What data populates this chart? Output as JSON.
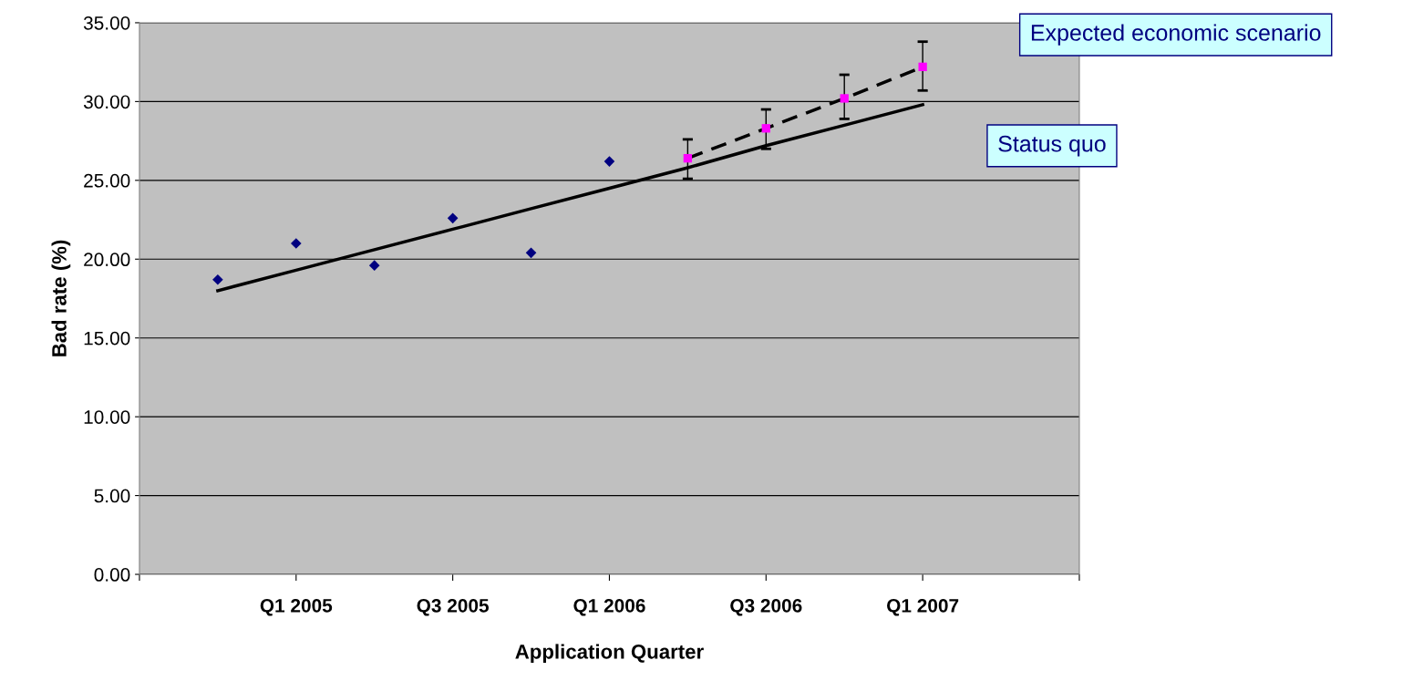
{
  "chart_data": {
    "type": "scatter",
    "xlabel": "Application Quarter",
    "ylabel": "Bad rate (%)",
    "categories": [
      null,
      null,
      "Q1 2005",
      null,
      "Q3 2005",
      null,
      "Q1 2006",
      null,
      "Q3 2006",
      null,
      "Q1 2007",
      null,
      null
    ],
    "series": [
      {
        "color": "#000080",
        "marker": "diamond",
        "values": [
          null,
          18.7,
          21.0,
          19.6,
          22.6,
          20.4,
          26.2,
          null,
          null,
          null,
          null,
          null,
          null
        ]
      },
      {
        "type": "line",
        "color": "#000000",
        "line_style": "solid",
        "marker": "none",
        "values": [
          null,
          18.0,
          19.3,
          20.6,
          21.9,
          23.2,
          24.5,
          25.8,
          27.2,
          28.5,
          29.8,
          null,
          null
        ]
      },
      {
        "type": "line",
        "color": "#000000",
        "line_style": "dashed",
        "marker": "none",
        "values": [
          null,
          null,
          null,
          null,
          null,
          null,
          null,
          26.4,
          28.3,
          30.2,
          32.2,
          null,
          null
        ]
      },
      {
        "color": "#ff00ff",
        "marker": "square",
        "values": [
          null,
          null,
          null,
          null,
          null,
          null,
          null,
          26.4,
          28.3,
          30.2,
          32.2,
          null,
          null
        ],
        "errors": [
          null,
          null,
          null,
          null,
          null,
          null,
          null,
          [
            25.1,
            27.6
          ],
          [
            27.0,
            29.5
          ],
          [
            28.9,
            31.7
          ],
          [
            30.7,
            33.8
          ],
          null,
          null
        ]
      }
    ],
    "ylim": [
      0,
      35
    ],
    "yticks": [
      {
        "value": 0,
        "label": "0.00"
      },
      {
        "value": 5,
        "label": "5.00"
      },
      {
        "value": 10,
        "label": "10.00"
      },
      {
        "value": 15,
        "label": "15.00"
      },
      {
        "value": 20,
        "label": "20.00"
      },
      {
        "value": 25,
        "label": "25.00"
      },
      {
        "value": 30,
        "label": "30.00"
      },
      {
        "value": 35,
        "label": "35.00"
      }
    ],
    "grid": "y",
    "annotations": [
      "Expected economic scenario",
      "Status quo"
    ]
  }
}
